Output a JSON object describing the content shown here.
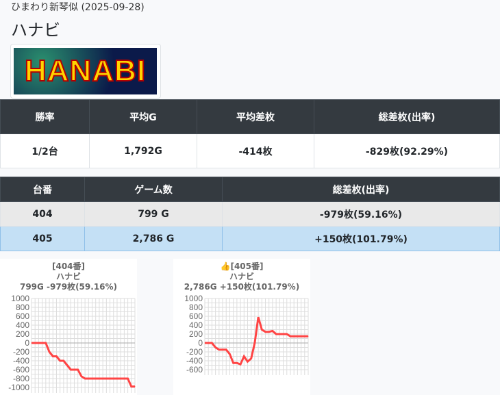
{
  "header": {
    "subtitle": "ひまわり新琴似 (2025-09-28)",
    "title": "ハナビ",
    "logo_text": "HANABI"
  },
  "summary": {
    "headers": [
      "勝率",
      "平均G",
      "平均差枚",
      "総差枚(出率)"
    ],
    "values": [
      "1/2台",
      "1,792G",
      "-414枚",
      "-829枚(92.29%)"
    ]
  },
  "machines": {
    "headers": [
      "台番",
      "ゲーム数",
      "総差枚(出率)"
    ],
    "rows": [
      [
        "404",
        "799 G",
        "-979枚(59.16%)"
      ],
      [
        "405",
        "2,786 G",
        "+150枚(101.79%)"
      ]
    ]
  },
  "chart_data": [
    {
      "type": "line",
      "label": "[404番]",
      "name": "ハナビ",
      "stats": "799G -979枚(59.16%)",
      "color": "#ff4444",
      "yticks": [
        "1000",
        "800",
        "600",
        "400",
        "200",
        "0",
        "-200",
        "-400",
        "-600",
        "-800",
        "-1000"
      ],
      "ylim": [
        -1000,
        1000
      ],
      "grid": true,
      "values": [
        0,
        0,
        0,
        0,
        0,
        -200,
        -300,
        -300,
        -400,
        -400,
        -500,
        -600,
        -600,
        -600,
        -750,
        -800,
        -800,
        -800,
        -800,
        -800,
        -800,
        -800,
        -800,
        -800,
        -800,
        -800,
        -800,
        -800,
        -979,
        -979
      ]
    },
    {
      "type": "line",
      "label": "👍[405番]",
      "name": "ハナビ",
      "stats": "2,786G +150枚(101.79%)",
      "color": "#ff4444",
      "yticks": [
        "1000",
        "800",
        "600",
        "400",
        "200",
        "0",
        "-200",
        "-400",
        "-600"
      ],
      "ylim": [
        -600,
        1000
      ],
      "grid": true,
      "values": [
        0,
        0,
        0,
        -100,
        -150,
        -150,
        -150,
        -250,
        -450,
        -450,
        -480,
        -300,
        -420,
        -350,
        0,
        580,
        300,
        250,
        250,
        270,
        200,
        200,
        200,
        200,
        150,
        150,
        150,
        150,
        150,
        150
      ]
    }
  ]
}
